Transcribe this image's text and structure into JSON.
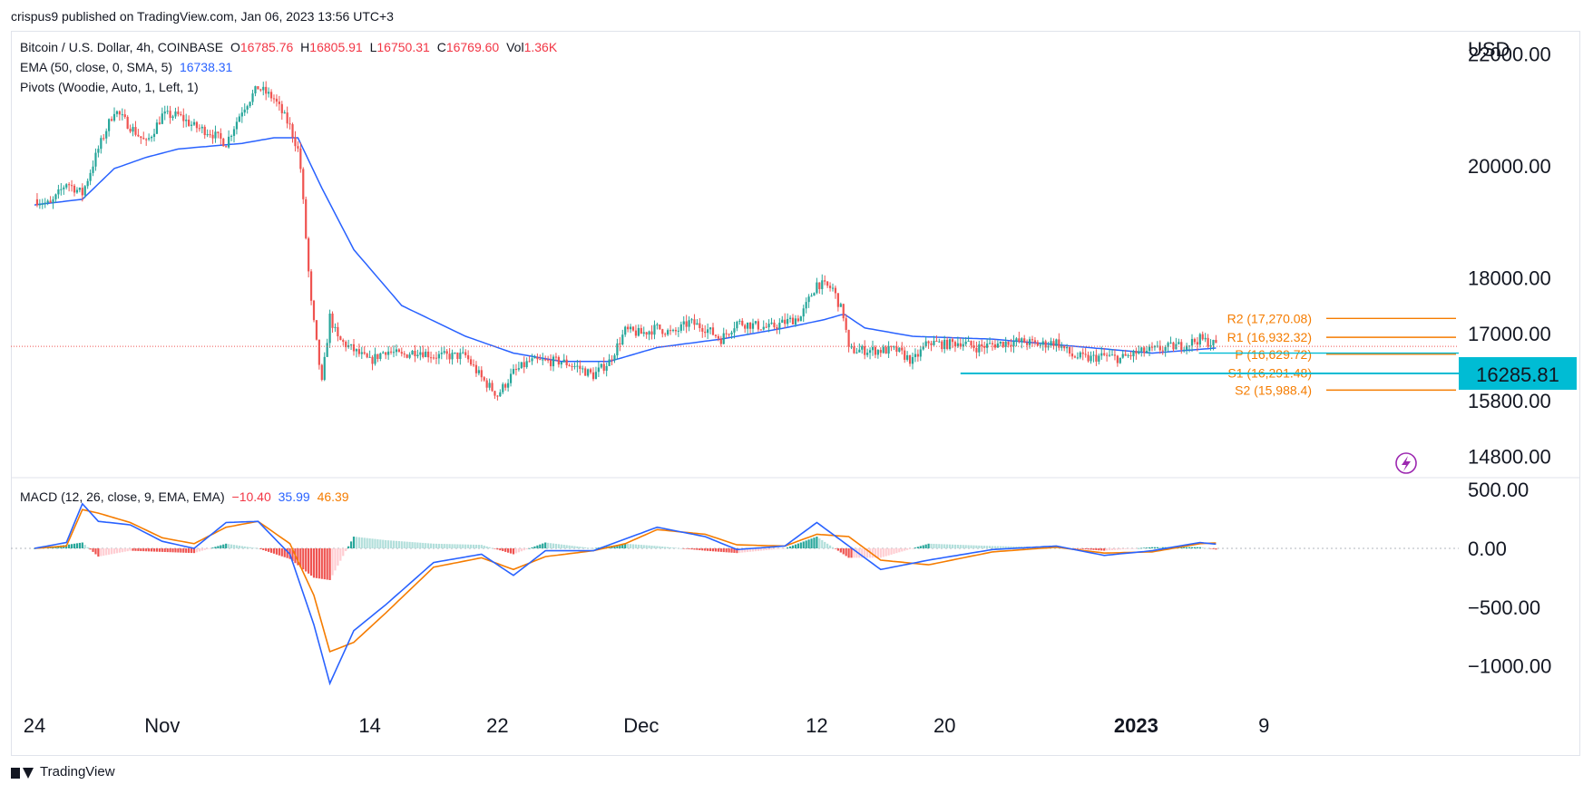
{
  "header": {
    "publisher_line": "crispus9 published on TradingView.com, Jan 06, 2023 13:56 UTC+3"
  },
  "legend": {
    "symbol": "Bitcoin / U.S. Dollar, 4h, COINBASE",
    "o_label": "O",
    "o_value": "16785.76",
    "h_label": "H",
    "h_value": "16805.91",
    "l_label": "L",
    "l_value": "16750.31",
    "c_label": "C",
    "c_value": "16769.60",
    "vol_label": "Vol",
    "vol_value": "1.36K",
    "ema_label": "EMA (50, close, 0, SMA, 5)",
    "ema_value": "16738.31",
    "pivots_label": "Pivots (Woodie, Auto, 1, Left, 1)",
    "macd_label": "MACD (12, 26, close, 9, EMA, EMA)",
    "macd_hist": "−10.40",
    "macd_line": "35.99",
    "macd_signal": "46.39"
  },
  "footer": {
    "brand": "TradingView"
  },
  "colors": {
    "up": "#26a69a",
    "down": "#ef5350",
    "ema": "#2962ff",
    "pivot": "#f57c00",
    "level": "#00bcd4",
    "macd_line": "#2962ff",
    "signal_line": "#f57c00",
    "hist_up": "#26a69a",
    "hist_up_light": "#b2dfdb",
    "hist_down": "#ef5350",
    "hist_down_light": "#ffcdd2",
    "last_price_line": "#ef5350",
    "badge": "#00bcd4"
  },
  "chart_data": {
    "type": "candlestick",
    "currency": "USD",
    "price_axis": {
      "ticks": [
        {
          "value": 14800,
          "label": "14800.00"
        },
        {
          "value": 15800,
          "label": "15800.00"
        },
        {
          "value": 17000,
          "label": "17000.00"
        },
        {
          "value": 18000,
          "label": "18000.00"
        },
        {
          "value": 20000,
          "label": "20000.00"
        },
        {
          "value": 22000,
          "label": "22000.00"
        }
      ],
      "current_price_label": "16285.81",
      "current_price_value": 16285.81,
      "last_close": 16769.6
    },
    "macd_axis": {
      "ticks": [
        {
          "value": 500,
          "label": "500.00"
        },
        {
          "value": 0,
          "label": "0.00"
        },
        {
          "value": -500,
          "label": "−500.00"
        },
        {
          "value": -1000,
          "label": "−1000.00"
        }
      ]
    },
    "x_axis": {
      "ticks": [
        {
          "day": 0,
          "label": "24",
          "bold": false
        },
        {
          "day": 8,
          "label": "Nov",
          "bold": false
        },
        {
          "day": 21,
          "label": "14",
          "bold": false
        },
        {
          "day": 29,
          "label": "22",
          "bold": false
        },
        {
          "day": 38,
          "label": "Dec",
          "bold": false
        },
        {
          "day": 49,
          "label": "12",
          "bold": false
        },
        {
          "day": 57,
          "label": "20",
          "bold": false
        },
        {
          "day": 69,
          "label": "2023",
          "bold": true
        },
        {
          "day": 77,
          "label": "9",
          "bold": false
        }
      ]
    },
    "pivots": [
      {
        "label": "R2 (17,270.08)",
        "value": 17270.08
      },
      {
        "label": "R1 (16,932.32)",
        "value": 16932.32
      },
      {
        "label": "P (16,629.72)",
        "value": 16629.72
      },
      {
        "label": "S1 (16,291.48)",
        "value": 16291.48
      },
      {
        "label": "S2 (15,988.4)",
        "value": 15988.4
      }
    ],
    "price_anchors": [
      {
        "day": 0,
        "price": 19400
      },
      {
        "day": 1,
        "price": 19300
      },
      {
        "day": 2,
        "price": 19700
      },
      {
        "day": 3,
        "price": 19500
      },
      {
        "day": 4,
        "price": 20300
      },
      {
        "day": 5,
        "price": 21000
      },
      {
        "day": 6,
        "price": 20700
      },
      {
        "day": 7,
        "price": 20400
      },
      {
        "day": 8,
        "price": 20900
      },
      {
        "day": 9,
        "price": 20900
      },
      {
        "day": 10,
        "price": 20700
      },
      {
        "day": 11,
        "price": 20600
      },
      {
        "day": 12,
        "price": 20400
      },
      {
        "day": 13,
        "price": 21000
      },
      {
        "day": 14,
        "price": 21400
      },
      {
        "day": 15,
        "price": 21200
      },
      {
        "day": 16,
        "price": 20700
      },
      {
        "day": 16.6,
        "price": 20200
      },
      {
        "day": 17.3,
        "price": 17600
      },
      {
        "day": 18,
        "price": 16100
      },
      {
        "day": 18.5,
        "price": 17300
      },
      {
        "day": 19,
        "price": 16900
      },
      {
        "day": 20,
        "price": 16700
      },
      {
        "day": 21,
        "price": 16500
      },
      {
        "day": 22,
        "price": 16700
      },
      {
        "day": 23,
        "price": 16600
      },
      {
        "day": 24,
        "price": 16700
      },
      {
        "day": 25,
        "price": 16600
      },
      {
        "day": 26,
        "price": 16600
      },
      {
        "day": 27,
        "price": 16600
      },
      {
        "day": 28,
        "price": 16200
      },
      {
        "day": 29,
        "price": 15900
      },
      {
        "day": 30,
        "price": 16300
      },
      {
        "day": 31,
        "price": 16500
      },
      {
        "day": 32,
        "price": 16500
      },
      {
        "day": 33,
        "price": 16500
      },
      {
        "day": 34,
        "price": 16400
      },
      {
        "day": 35,
        "price": 16250
      },
      {
        "day": 36,
        "price": 16500
      },
      {
        "day": 37,
        "price": 17050
      },
      {
        "day": 38,
        "price": 17000
      },
      {
        "day": 39,
        "price": 17100
      },
      {
        "day": 40,
        "price": 17000
      },
      {
        "day": 41,
        "price": 17200
      },
      {
        "day": 42,
        "price": 17100
      },
      {
        "day": 43,
        "price": 16900
      },
      {
        "day": 44,
        "price": 17200
      },
      {
        "day": 45,
        "price": 17150
      },
      {
        "day": 46,
        "price": 17100
      },
      {
        "day": 47,
        "price": 17200
      },
      {
        "day": 48,
        "price": 17300
      },
      {
        "day": 49,
        "price": 17900
      },
      {
        "day": 50,
        "price": 17800
      },
      {
        "day": 50.7,
        "price": 17300
      },
      {
        "day": 51,
        "price": 16700
      },
      {
        "day": 52,
        "price": 16700
      },
      {
        "day": 53,
        "price": 16700
      },
      {
        "day": 54,
        "price": 16700
      },
      {
        "day": 55,
        "price": 16500
      },
      {
        "day": 56,
        "price": 16850
      },
      {
        "day": 57,
        "price": 16800
      },
      {
        "day": 58,
        "price": 16850
      },
      {
        "day": 59,
        "price": 16750
      },
      {
        "day": 60,
        "price": 16800
      },
      {
        "day": 61,
        "price": 16850
      },
      {
        "day": 62,
        "price": 16850
      },
      {
        "day": 63,
        "price": 16800
      },
      {
        "day": 64,
        "price": 16850
      },
      {
        "day": 65,
        "price": 16600
      },
      {
        "day": 66,
        "price": 16550
      },
      {
        "day": 67,
        "price": 16600
      },
      {
        "day": 68,
        "price": 16550
      },
      {
        "day": 69,
        "price": 16650
      },
      {
        "day": 70,
        "price": 16700
      },
      {
        "day": 71,
        "price": 16750
      },
      {
        "day": 72,
        "price": 16800
      },
      {
        "day": 73,
        "price": 16900
      },
      {
        "day": 74,
        "price": 16800
      }
    ],
    "ema_anchors": [
      {
        "day": 0,
        "price": 19300
      },
      {
        "day": 3,
        "price": 19400
      },
      {
        "day": 5,
        "price": 19950
      },
      {
        "day": 7,
        "price": 20150
      },
      {
        "day": 9,
        "price": 20300
      },
      {
        "day": 13,
        "price": 20400
      },
      {
        "day": 15,
        "price": 20500
      },
      {
        "day": 16.5,
        "price": 20500
      },
      {
        "day": 18,
        "price": 19600
      },
      {
        "day": 20,
        "price": 18500
      },
      {
        "day": 23,
        "price": 17500
      },
      {
        "day": 27,
        "price": 16950
      },
      {
        "day": 30,
        "price": 16650
      },
      {
        "day": 33,
        "price": 16500
      },
      {
        "day": 36,
        "price": 16500
      },
      {
        "day": 39,
        "price": 16750
      },
      {
        "day": 43,
        "price": 16900
      },
      {
        "day": 47,
        "price": 17100
      },
      {
        "day": 49.5,
        "price": 17250
      },
      {
        "day": 50.7,
        "price": 17350
      },
      {
        "day": 52,
        "price": 17100
      },
      {
        "day": 55,
        "price": 16950
      },
      {
        "day": 60,
        "price": 16900
      },
      {
        "day": 66,
        "price": 16750
      },
      {
        "day": 70,
        "price": 16650
      },
      {
        "day": 74,
        "price": 16740
      }
    ],
    "macd_anchors": [
      {
        "day": 0,
        "macd": 0,
        "signal": 0
      },
      {
        "day": 2,
        "macd": 50,
        "signal": 20
      },
      {
        "day": 3,
        "macd": 380,
        "signal": 330
      },
      {
        "day": 4,
        "macd": 230,
        "signal": 300
      },
      {
        "day": 6,
        "macd": 200,
        "signal": 220
      },
      {
        "day": 8,
        "macd": 60,
        "signal": 90
      },
      {
        "day": 10,
        "macd": 0,
        "signal": 40
      },
      {
        "day": 12,
        "macd": 220,
        "signal": 180
      },
      {
        "day": 14,
        "macd": 230,
        "signal": 230
      },
      {
        "day": 16,
        "macd": -50,
        "signal": 40
      },
      {
        "day": 17.5,
        "macd": -650,
        "signal": -400
      },
      {
        "day": 18.5,
        "macd": -1150,
        "signal": -880
      },
      {
        "day": 20,
        "macd": -700,
        "signal": -800
      },
      {
        "day": 22,
        "macd": -480,
        "signal": -550
      },
      {
        "day": 25,
        "macd": -120,
        "signal": -160
      },
      {
        "day": 28,
        "macd": -50,
        "signal": -80
      },
      {
        "day": 30,
        "macd": -230,
        "signal": -180
      },
      {
        "day": 32,
        "macd": -20,
        "signal": -70
      },
      {
        "day": 35,
        "macd": -20,
        "signal": -20
      },
      {
        "day": 37,
        "macd": 80,
        "signal": 40
      },
      {
        "day": 39,
        "macd": 180,
        "signal": 160
      },
      {
        "day": 42,
        "macd": 100,
        "signal": 120
      },
      {
        "day": 44,
        "macd": -10,
        "signal": 30
      },
      {
        "day": 47,
        "macd": 20,
        "signal": 20
      },
      {
        "day": 49,
        "macd": 220,
        "signal": 120
      },
      {
        "day": 51,
        "macd": 20,
        "signal": 100
      },
      {
        "day": 53,
        "macd": -180,
        "signal": -100
      },
      {
        "day": 56,
        "macd": -100,
        "signal": -140
      },
      {
        "day": 60,
        "macd": -10,
        "signal": -30
      },
      {
        "day": 64,
        "macd": 20,
        "signal": 10
      },
      {
        "day": 67,
        "macd": -60,
        "signal": -40
      },
      {
        "day": 70,
        "macd": -20,
        "signal": -30
      },
      {
        "day": 73,
        "macd": 50,
        "signal": 40
      },
      {
        "day": 74,
        "macd": 36,
        "signal": 46
      }
    ]
  }
}
